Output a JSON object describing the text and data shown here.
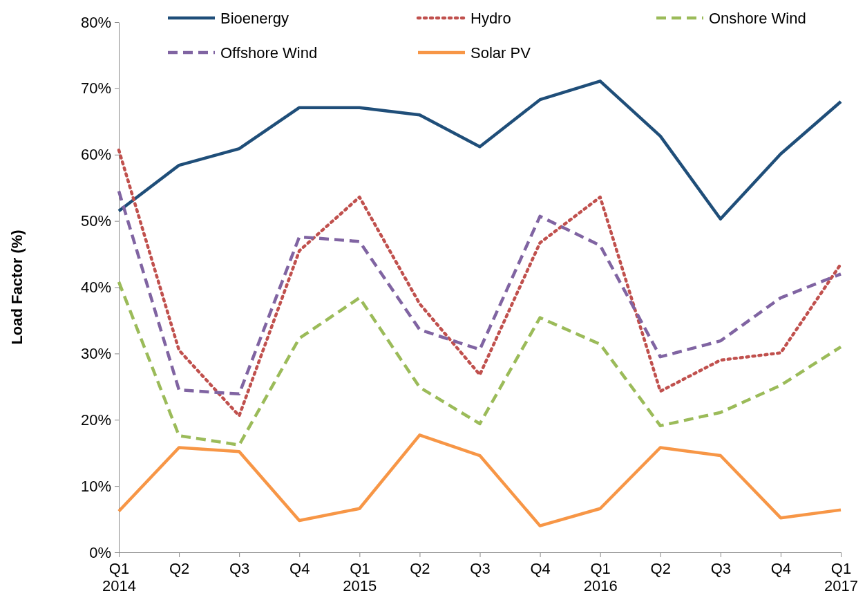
{
  "chart_data": {
    "type": "line",
    "ylabel": "Load Factor (%)",
    "categories": [
      "Q1\n2014",
      "Q2",
      "Q3",
      "Q4",
      "Q1\n2015",
      "Q2",
      "Q3",
      "Q4",
      "Q1\n2016",
      "Q2",
      "Q3",
      "Q4",
      "Q1\n2017"
    ],
    "ylim": [
      0,
      80
    ],
    "yticks": [
      {
        "value": 0,
        "label": "0%"
      },
      {
        "value": 10,
        "label": "10%"
      },
      {
        "value": 20,
        "label": "20%"
      },
      {
        "value": 30,
        "label": "30%"
      },
      {
        "value": 40,
        "label": "40%"
      },
      {
        "value": 50,
        "label": "50%"
      },
      {
        "value": 60,
        "label": "60%"
      },
      {
        "value": 70,
        "label": "70%"
      },
      {
        "value": 80,
        "label": "80%"
      }
    ],
    "grid": false,
    "legend": "top",
    "marker": "none",
    "series": [
      {
        "name": "Bioenergy",
        "color": "#1f4e79",
        "line_style": "solid",
        "values": [
          51.5,
          58.4,
          60.9,
          67.1,
          67.1,
          66.0,
          61.2,
          68.3,
          71.1,
          62.8,
          50.3,
          60.1,
          68.0
        ]
      },
      {
        "name": "Hydro",
        "color": "#c0504d",
        "line_style": "dotted",
        "values": [
          60.7,
          30.5,
          20.6,
          45.5,
          53.6,
          37.5,
          26.8,
          46.7,
          53.6,
          24.3,
          29.0,
          30.1,
          43.5
        ]
      },
      {
        "name": "Onshore Wind",
        "color": "#9bbb59",
        "line_style": "dashed",
        "values": [
          40.8,
          17.6,
          16.2,
          32.3,
          38.4,
          24.9,
          19.4,
          35.4,
          31.4,
          19.1,
          21.1,
          25.2,
          31.0
        ]
      },
      {
        "name": "Offshore Wind",
        "color": "#8064a2",
        "line_style": "dashed",
        "values": [
          54.5,
          24.5,
          23.9,
          47.6,
          46.9,
          33.6,
          30.6,
          50.7,
          46.3,
          29.5,
          31.9,
          38.4,
          42.0
        ]
      },
      {
        "name": "Solar PV",
        "color": "#f79646",
        "line_style": "solid",
        "values": [
          6.2,
          15.8,
          15.2,
          4.8,
          6.6,
          17.7,
          14.6,
          4.0,
          6.6,
          15.8,
          14.6,
          5.2,
          6.4
        ]
      }
    ]
  }
}
